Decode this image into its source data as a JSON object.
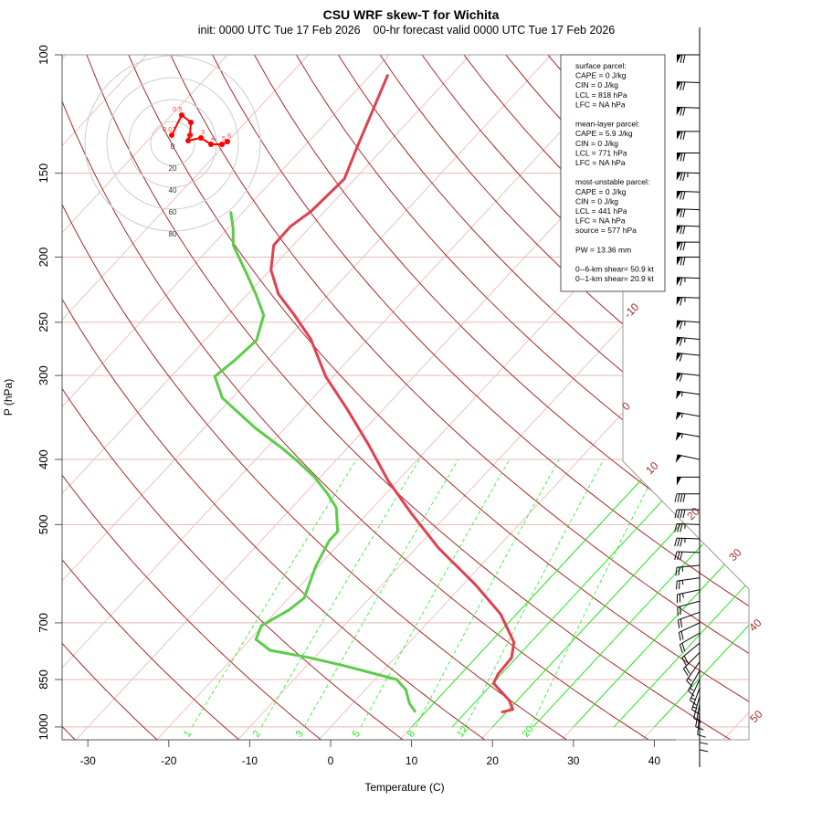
{
  "chart_data": {
    "type": "line",
    "title": "CSU WRF skew-T for Wichita",
    "subtitle": "init: 0000 UTC Tue 17 Feb 2026    00-hr forecast valid 0000 UTC Tue 17 Feb 2026",
    "xlabel": "Temperature (C)",
    "ylabel": "P (hPa)",
    "x_ticks": [
      -30,
      -20,
      -10,
      0,
      10,
      20,
      30,
      40
    ],
    "y_ticks": [
      100,
      150,
      200,
      250,
      300,
      400,
      500,
      700,
      850,
      1000
    ],
    "ylim": [
      1050,
      100
    ],
    "xlim_at_1000hPa": [
      -33,
      52
    ],
    "isotherm_labels": [
      -10,
      0,
      10,
      20,
      30,
      40,
      50
    ],
    "mixing_ratio_labels": [
      1,
      2,
      3,
      5,
      8,
      12,
      20
    ],
    "moist_adiabat_start_temps": [
      10,
      15,
      20,
      25,
      30,
      35,
      40
    ],
    "series": [
      {
        "name": "temperature",
        "color": "#e0404f",
        "points": [
          [
            951,
            19.4
          ],
          [
            942,
            20.5
          ],
          [
            913,
            19.0
          ],
          [
            861,
            15.1
          ],
          [
            834,
            14.6
          ],
          [
            789,
            14.4
          ],
          [
            748,
            12.9
          ],
          [
            679,
            8.0
          ],
          [
            614,
            1.5
          ],
          [
            542,
            -7.2
          ],
          [
            481,
            -14.6
          ],
          [
            431,
            -21.1
          ],
          [
            380,
            -27.8
          ],
          [
            336,
            -34.6
          ],
          [
            301,
            -40.9
          ],
          [
            265,
            -47.0
          ],
          [
            244,
            -51.8
          ],
          [
            227,
            -56.2
          ],
          [
            209,
            -59.9
          ],
          [
            192,
            -62.4
          ],
          [
            180,
            -62.5
          ],
          [
            171,
            -61.7
          ],
          [
            153,
            -61.3
          ],
          [
            137,
            -63.4
          ],
          [
            107,
            -67.9
          ]
        ]
      },
      {
        "name": "dewpoint",
        "color": "#5ccc4a",
        "points": [
          [
            951,
            8.8
          ],
          [
            922,
            7.0
          ],
          [
            880,
            5.0
          ],
          [
            850,
            2.7
          ],
          [
            813,
            -4.9
          ],
          [
            789,
            -10.5
          ],
          [
            769,
            -16.3
          ],
          [
            741,
            -19.3
          ],
          [
            707,
            -20.2
          ],
          [
            670,
            -18.6
          ],
          [
            643,
            -18.1
          ],
          [
            577,
            -20.3
          ],
          [
            528,
            -21.6
          ],
          [
            512,
            -21.6
          ],
          [
            472,
            -24.5
          ],
          [
            449,
            -27.3
          ],
          [
            425,
            -30.7
          ],
          [
            402,
            -34.7
          ],
          [
            386,
            -37.8
          ],
          [
            359,
            -43.7
          ],
          [
            324,
            -51.2
          ],
          [
            301,
            -54.6
          ],
          [
            285,
            -54.0
          ],
          [
            266,
            -53.6
          ],
          [
            244,
            -55.6
          ],
          [
            227,
            -59.0
          ],
          [
            212,
            -62.4
          ],
          [
            192,
            -67.4
          ],
          [
            181,
            -69.4
          ],
          [
            171,
            -71.6
          ]
        ]
      }
    ],
    "hodograph": {
      "rings_kt": [
        20,
        40,
        60,
        80
      ],
      "ring_labels": [
        "0",
        "20",
        "40",
        "60",
        "80"
      ],
      "points": [
        {
          "label": "0.01",
          "u": -0.8,
          "v": 7.5
        },
        {
          "label": "0.5",
          "u": 8.3,
          "v": 25.8
        },
        {
          "label": "",
          "u": 16.7,
          "v": 19.2
        },
        {
          "label": "",
          "u": 15.8,
          "v": 7.5
        },
        {
          "label": "1",
          "u": 14.2,
          "v": 2.5
        },
        {
          "label": "3",
          "u": 25.8,
          "v": 5.0
        },
        {
          "label": "4",
          "u": 35.0,
          "v": -0.8
        },
        {
          "label": "5",
          "u": 45.0,
          "v": -0.8
        },
        {
          "label": "6",
          "u": 50.0,
          "v": 1.7
        }
      ]
    },
    "wind_barbs": [
      [
        100,
        270,
        70
      ],
      [
        110,
        272,
        70
      ],
      [
        120,
        272,
        70
      ],
      [
        130,
        270,
        70
      ],
      [
        140,
        270,
        70
      ],
      [
        150,
        272,
        75
      ],
      [
        160,
        272,
        70
      ],
      [
        170,
        272,
        70
      ],
      [
        180,
        272,
        70
      ],
      [
        190,
        270,
        70
      ],
      [
        200,
        270,
        70
      ],
      [
        215,
        272,
        65
      ],
      [
        230,
        272,
        65
      ],
      [
        250,
        274,
        65
      ],
      [
        265,
        275,
        65
      ],
      [
        280,
        276,
        60
      ],
      [
        300,
        276,
        60
      ],
      [
        320,
        278,
        55
      ],
      [
        345,
        280,
        55
      ],
      [
        370,
        280,
        55
      ],
      [
        400,
        282,
        50
      ],
      [
        425,
        270,
        50
      ],
      [
        450,
        270,
        40
      ],
      [
        475,
        270,
        40
      ],
      [
        500,
        272,
        35
      ],
      [
        525,
        272,
        35
      ],
      [
        550,
        272,
        30
      ],
      [
        575,
        265,
        25
      ],
      [
        600,
        262,
        25
      ],
      [
        625,
        258,
        25
      ],
      [
        650,
        255,
        20
      ],
      [
        675,
        250,
        20
      ],
      [
        700,
        245,
        20
      ],
      [
        725,
        240,
        20
      ],
      [
        750,
        230,
        20
      ],
      [
        775,
        225,
        20
      ],
      [
        800,
        215,
        15
      ],
      [
        825,
        210,
        15
      ],
      [
        850,
        205,
        15
      ],
      [
        875,
        200,
        15
      ],
      [
        900,
        195,
        10
      ],
      [
        925,
        190,
        10
      ],
      [
        950,
        185,
        10
      ],
      [
        975,
        180,
        10
      ],
      [
        1000,
        180,
        10
      ]
    ]
  },
  "legend": {
    "lines": [
      "surface parcel:",
      "CAPE = 0 J/kg",
      "CIN = 0 J/kg",
      "LCL = 818 hPa",
      "LFC = NA hPa",
      "",
      "mean-layer parcel:",
      "CAPE = 5.9 J/kg",
      "CIN = 0 J/kg",
      "LCL = 771 hPa",
      "LFC = NA hPa",
      "",
      "most-unstable parcel:",
      "CAPE = 0 J/kg",
      "CIN = 0 J/kg",
      "LCL = 441 hPa",
      "LFC = NA hPa",
      "source = 577 hPa",
      "",
      "PW =  13.36 mm",
      "",
      "0--6-km shear= 50.9 kt",
      "0--1-km shear= 20.9 kt"
    ]
  },
  "colors": {
    "dry_adiabat": "#a52a2a",
    "isotherm": "#f0c0c0",
    "isobar": "#e8b8b8",
    "moist_adiabat": "#22ee22",
    "mixing_ratio": "#22ee22",
    "hodograph": "#ff0000",
    "ring": "#cccccc"
  }
}
